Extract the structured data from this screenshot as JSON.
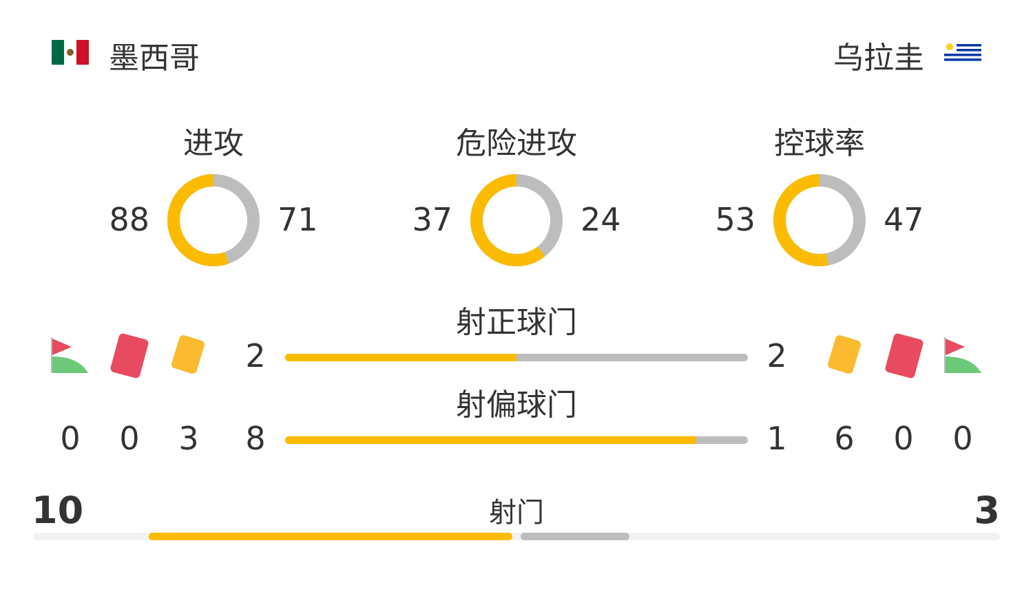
{
  "home": {
    "name": "墨西哥",
    "flag": "mexico-flag"
  },
  "away": {
    "name": "乌拉圭",
    "flag": "uruguay-flag"
  },
  "colors": {
    "home": "#fbbb00",
    "away": "#bdbdbd"
  },
  "donuts": [
    {
      "label": "进攻",
      "home": 88,
      "away": 71
    },
    {
      "label": "危险进攻",
      "home": 37,
      "away": 24
    },
    {
      "label": "控球率",
      "home": 53,
      "away": 47
    }
  ],
  "bars": [
    {
      "label": "射正球门",
      "home": 2,
      "away": 2
    },
    {
      "label": "射偏球门",
      "home": 8,
      "away": 1
    }
  ],
  "home_counts": {
    "corners": 0,
    "red_cards": 0,
    "yellow_cards": 3
  },
  "away_counts": {
    "yellow_cards": 6,
    "red_cards": 0,
    "corners": 0
  },
  "shots": {
    "label": "射门",
    "home": 10,
    "away": 3
  }
}
